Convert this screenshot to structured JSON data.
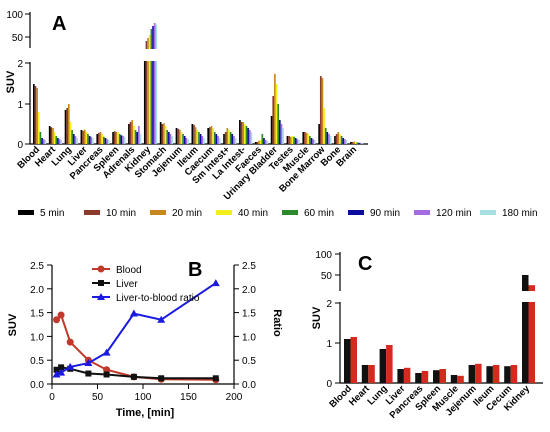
{
  "colors": {
    "panelA": [
      "#000000",
      "#8B3A2B",
      "#C8861F",
      "#F3EF1B",
      "#2C8A2C",
      "#0B0B9E",
      "#A56BE0",
      "#A8DFE0"
    ],
    "blood": "#C0392B",
    "liver": "#111111",
    "ratio": "#1A1AE0",
    "panelC": [
      "#111111",
      "#D52B1E"
    ]
  },
  "panelA": {
    "label": "A",
    "ylabel": "SUV",
    "upper_ticks": [
      "100",
      "50"
    ],
    "lower_ticks": [
      "0",
      "1",
      "2"
    ],
    "legend": [
      "5 min",
      "10 min",
      "20 min",
      "40 min",
      "60 min",
      "90 min",
      "120 min",
      "180 min"
    ]
  },
  "panelB": {
    "label": "B",
    "ylabel": "SUV",
    "ylabel_right": "Ratio",
    "xlabel": "Time, [min]",
    "xticks": [
      "0",
      "50",
      "100",
      "150",
      "200"
    ],
    "yticks": [
      "0.0",
      "0.5",
      "1.0",
      "1.5",
      "2.0",
      "2.5"
    ],
    "yticks_right": [
      "0.0",
      "0.5",
      "1.0",
      "1.5",
      "2.0",
      "2.5"
    ],
    "legend": [
      "Blood",
      "Liver",
      "Liver-to-blood ratio"
    ]
  },
  "panelC": {
    "label": "C",
    "ylabel": "SUV",
    "upper_ticks": [
      "100",
      "50"
    ],
    "lower_ticks": [
      "0",
      "1",
      "2"
    ]
  },
  "chart_data": [
    {
      "type": "bar",
      "panel": "A",
      "ylabel": "SUV",
      "y_axis": "broken: 0-2 and 2-100",
      "categories": [
        "Blood",
        "Heart",
        "Lung",
        "Liver",
        "Pancreas",
        "Spleen",
        "Adrenals",
        "Kidney",
        "Stomach",
        "Jejenum",
        "Ileum",
        "Caecum",
        "Sm Intest+",
        "La Intest-",
        "Faeces",
        "Urinary Bladder",
        "Testes",
        "Muscle",
        "Bone Marrow",
        "Bone",
        "Brain"
      ],
      "series": [
        {
          "name": "5 min",
          "values": [
            1.5,
            0.45,
            0.85,
            0.35,
            0.25,
            0.3,
            0.5,
            40,
            0.55,
            0.4,
            0.5,
            0.4,
            0.25,
            0.6,
            0.05,
            0.7,
            0.2,
            0.3,
            0.5,
            0.2,
            0.05
          ]
        },
        {
          "name": "10 min",
          "values": [
            1.45,
            0.42,
            0.9,
            0.33,
            0.28,
            0.32,
            0.55,
            55,
            0.5,
            0.38,
            0.48,
            0.42,
            0.3,
            0.55,
            0.05,
            1.2,
            0.2,
            0.3,
            1.7,
            0.25,
            0.05
          ]
        },
        {
          "name": "20 min",
          "values": [
            1.4,
            0.4,
            1.0,
            0.36,
            0.3,
            0.3,
            0.6,
            60,
            0.52,
            0.36,
            0.42,
            0.45,
            0.4,
            0.55,
            0.08,
            1.75,
            0.18,
            0.28,
            1.65,
            0.3,
            0.06
          ]
        },
        {
          "name": "40 min",
          "values": [
            0.8,
            0.3,
            0.55,
            0.3,
            0.25,
            0.3,
            0.45,
            65,
            0.45,
            0.3,
            0.35,
            0.4,
            0.35,
            0.5,
            0.1,
            1.5,
            0.2,
            0.25,
            0.9,
            0.25,
            0.05
          ]
        },
        {
          "name": "60 min",
          "values": [
            0.3,
            0.2,
            0.35,
            0.25,
            0.18,
            0.25,
            0.35,
            75,
            0.35,
            0.25,
            0.3,
            0.3,
            0.3,
            0.45,
            0.25,
            1.0,
            0.18,
            0.2,
            0.4,
            0.2,
            0.04
          ]
        },
        {
          "name": "90 min",
          "values": [
            0.15,
            0.15,
            0.25,
            0.2,
            0.15,
            0.22,
            0.3,
            80,
            0.3,
            0.2,
            0.25,
            0.25,
            0.25,
            0.4,
            0.15,
            0.6,
            0.15,
            0.15,
            0.3,
            0.15,
            0.03
          ]
        },
        {
          "name": "120 min",
          "values": [
            0.12,
            0.12,
            0.2,
            0.18,
            0.12,
            0.2,
            0.45,
            85,
            0.25,
            0.15,
            0.2,
            0.2,
            0.2,
            0.35,
            0.1,
            0.5,
            0.12,
            0.12,
            0.25,
            0.12,
            0.03
          ]
        },
        {
          "name": "180 min",
          "values": [
            0.1,
            0.1,
            0.15,
            0.15,
            0.1,
            0.18,
            0.25,
            82,
            0.2,
            0.12,
            0.15,
            0.15,
            0.15,
            0.3,
            0.08,
            0.4,
            0.1,
            0.1,
            0.2,
            0.1,
            0.02
          ]
        }
      ]
    },
    {
      "type": "line",
      "panel": "B",
      "xlabel": "Time, [min]",
      "ylabel": "SUV",
      "ylabel_right": "Ratio",
      "xlim": [
        0,
        200
      ],
      "ylim": [
        0,
        2.5
      ],
      "ylim_right": [
        0,
        2.5
      ],
      "series": [
        {
          "name": "Blood",
          "axis": "left",
          "x": [
            5,
            10,
            20,
            40,
            60,
            90,
            120,
            180
          ],
          "y": [
            1.35,
            1.45,
            0.88,
            0.5,
            0.3,
            0.15,
            0.1,
            0.09
          ]
        },
        {
          "name": "Liver",
          "axis": "left",
          "x": [
            5,
            10,
            20,
            40,
            60,
            90,
            120,
            180
          ],
          "y": [
            0.3,
            0.35,
            0.32,
            0.22,
            0.2,
            0.15,
            0.12,
            0.12
          ]
        },
        {
          "name": "Liver-to-blood ratio",
          "axis": "right",
          "x": [
            5,
            10,
            20,
            40,
            60,
            90,
            120,
            180
          ],
          "y": [
            0.2,
            0.24,
            0.36,
            0.44,
            0.66,
            1.48,
            1.35,
            2.12
          ]
        }
      ]
    },
    {
      "type": "bar",
      "panel": "C",
      "ylabel": "SUV",
      "y_axis": "broken: 0-2 and 2-100",
      "categories": [
        "Blood",
        "Heart",
        "Lung",
        "Liver",
        "Pancreas",
        "Spleen",
        "Muscle",
        "Jejenum",
        "Ileum",
        "Cecum",
        "Kidney"
      ],
      "series": [
        {
          "values": [
            1.1,
            0.45,
            0.85,
            0.35,
            0.25,
            0.32,
            0.2,
            0.45,
            0.42,
            0.42,
            65
          ]
        },
        {
          "values": [
            1.15,
            0.45,
            0.95,
            0.38,
            0.3,
            0.35,
            0.18,
            0.48,
            0.45,
            0.45,
            48
          ]
        }
      ]
    }
  ]
}
